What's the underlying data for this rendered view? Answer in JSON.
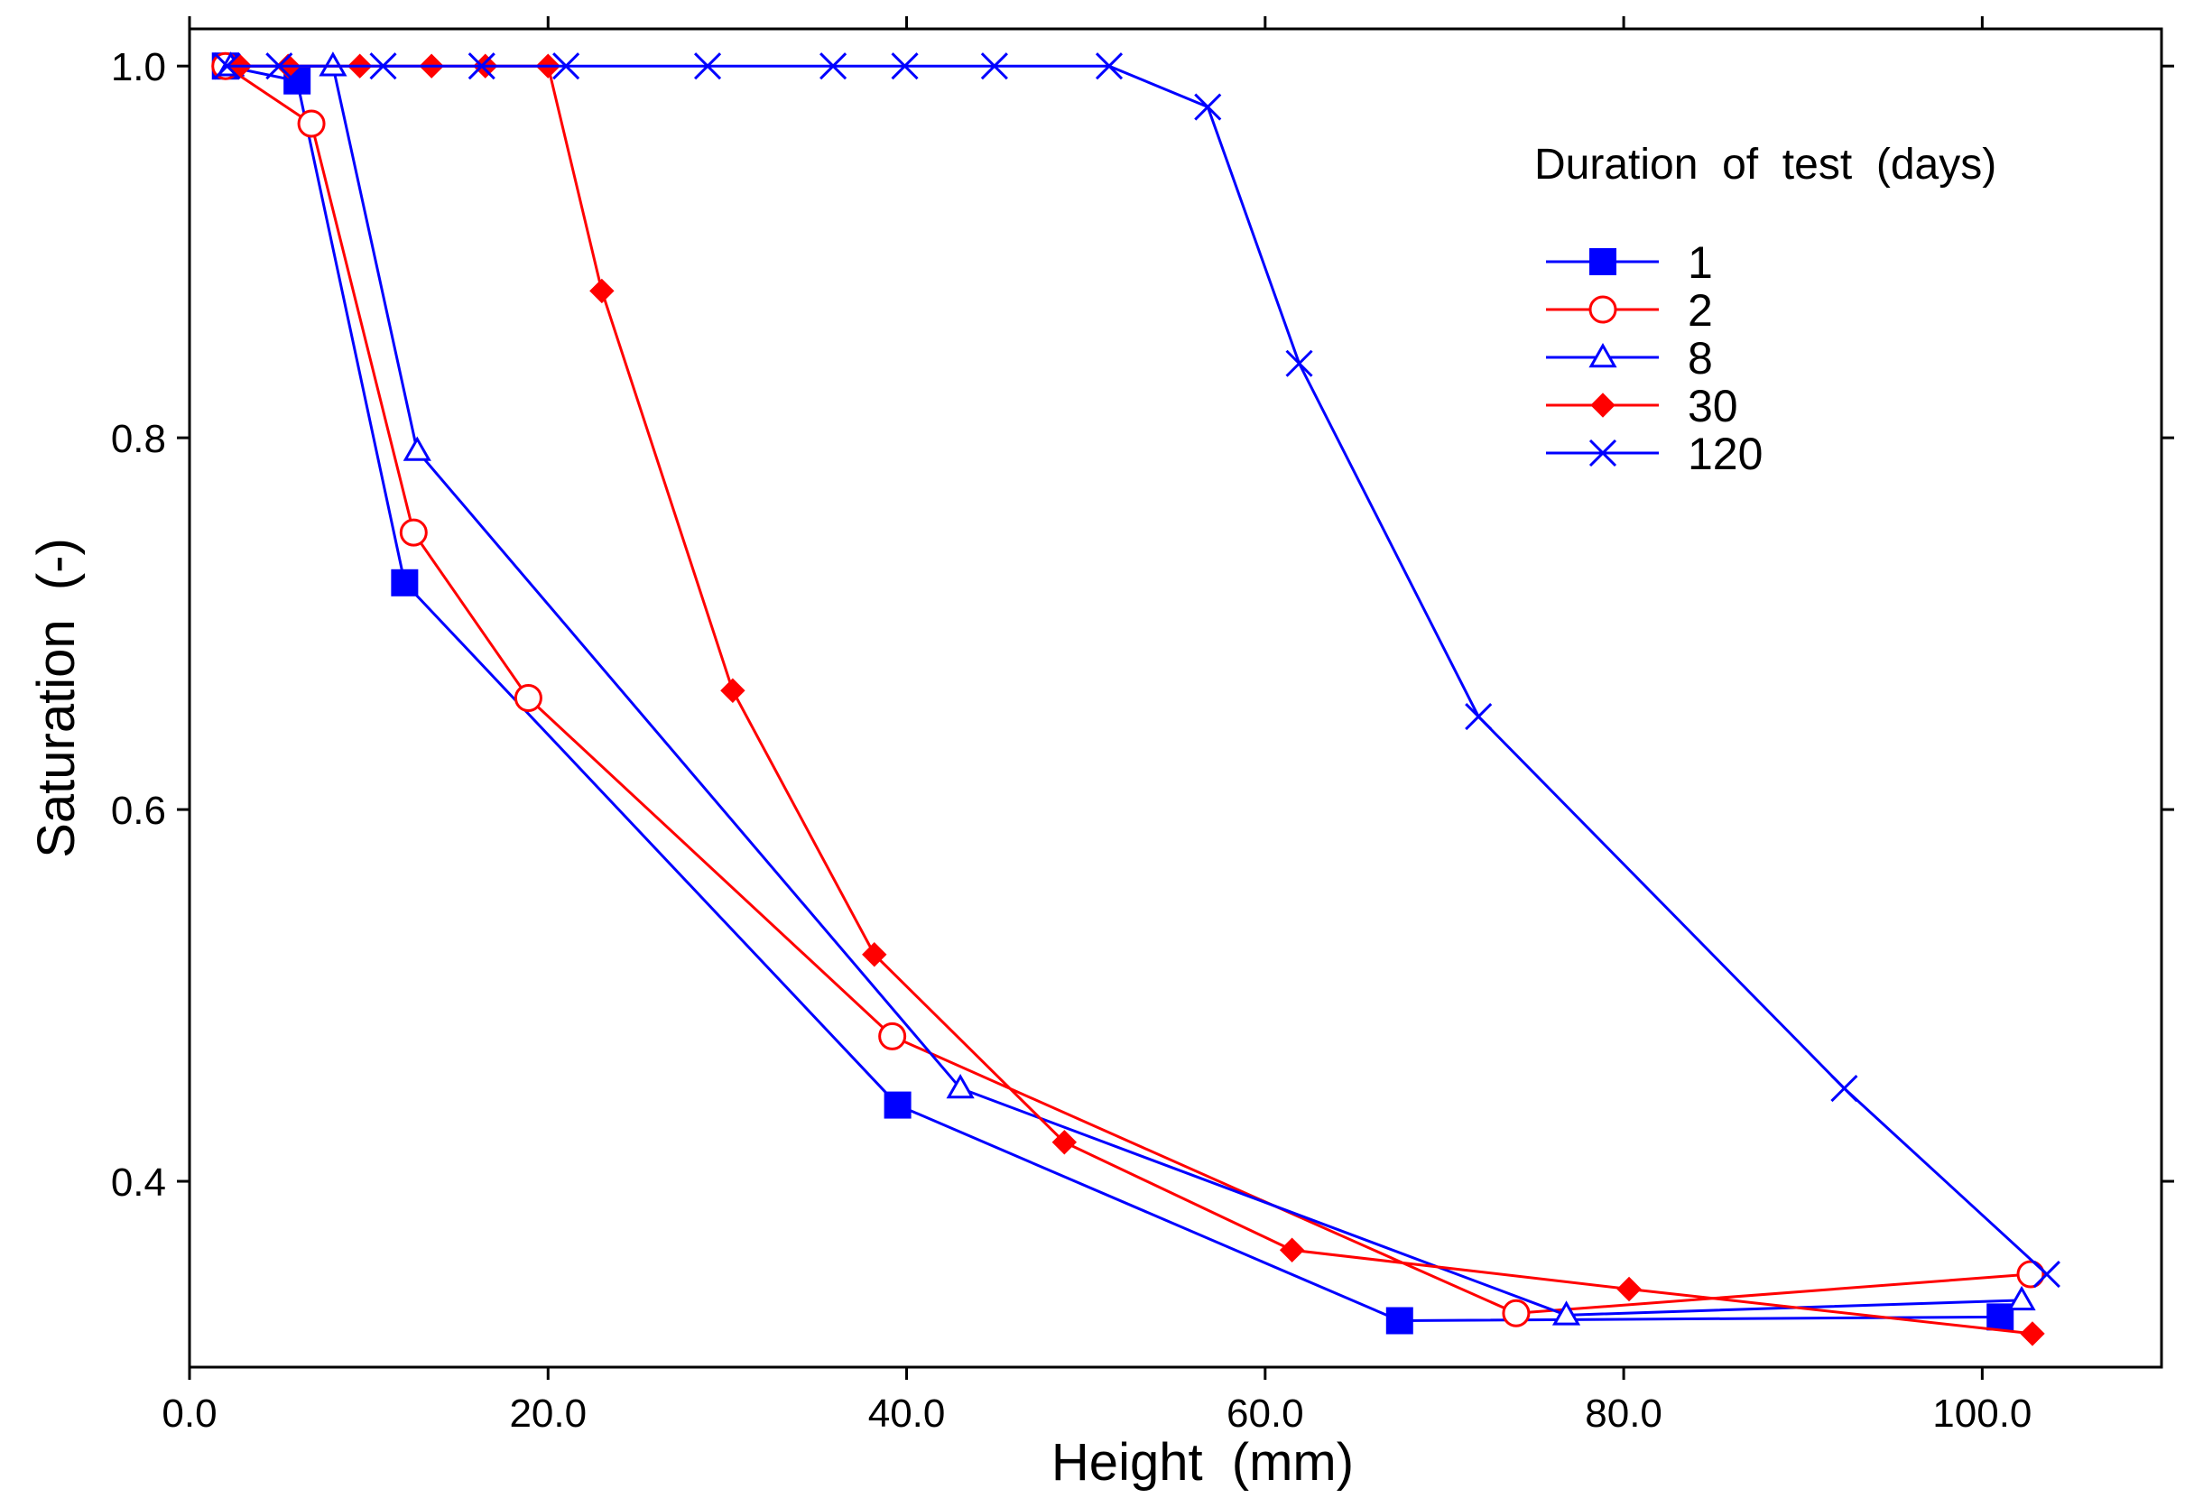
{
  "chart_data": {
    "type": "line",
    "title": "",
    "xlabel": "Height  (mm)",
    "ylabel": "Saturation  (-)",
    "xlim": [
      0,
      110
    ],
    "ylim": [
      0.3,
      1.02
    ],
    "xticks": [
      0,
      20,
      40,
      60,
      80,
      100
    ],
    "xtick_labels": [
      "0.0",
      "20.0",
      "40.0",
      "60.0",
      "80.0",
      "100.0"
    ],
    "yticks": [
      0.4,
      0.6,
      0.8,
      1.0
    ],
    "ytick_labels": [
      "0.4",
      "0.6",
      "0.8",
      "1.0"
    ],
    "grid": false,
    "legend": {
      "title": "Duration  of  test  (days)",
      "position": "top-right"
    },
    "series": [
      {
        "name": "1",
        "color": "#0000ff",
        "marker": "square-filled",
        "x": [
          2.0,
          6.0,
          12.0,
          39.5,
          67.5,
          101.0
        ],
        "y": [
          1.0,
          0.992,
          0.722,
          0.441,
          0.325,
          0.327
        ]
      },
      {
        "name": "2",
        "color": "#ff0000",
        "marker": "circle-open",
        "x": [
          2.0,
          6.8,
          12.5,
          18.9,
          39.2,
          74.0,
          102.7
        ],
        "y": [
          1.0,
          0.969,
          0.749,
          0.66,
          0.478,
          0.329,
          0.35
        ]
      },
      {
        "name": "8",
        "color": "#0000ff",
        "marker": "triangle-open",
        "x": [
          2.3,
          8.0,
          12.7,
          43.0,
          76.8,
          102.2
        ],
        "y": [
          1.0,
          1.0,
          0.793,
          0.45,
          0.328,
          0.336
        ]
      },
      {
        "name": "30",
        "color": "#ff0000",
        "marker": "diamond-filled",
        "x": [
          2.8,
          5.5,
          9.5,
          13.5,
          16.5,
          20.0,
          23.0,
          30.3,
          38.2,
          48.8,
          61.5,
          80.3,
          102.8
        ],
        "y": [
          1.0,
          1.0,
          1.0,
          1.0,
          1.0,
          1.0,
          0.879,
          0.664,
          0.522,
          0.421,
          0.363,
          0.342,
          0.318
        ]
      },
      {
        "name": "120",
        "color": "#0000ff",
        "marker": "x",
        "x": [
          2.1,
          5.0,
          10.8,
          16.3,
          21.0,
          28.9,
          35.9,
          39.9,
          44.9,
          51.3,
          56.8,
          61.9,
          71.9,
          92.3,
          103.6
        ],
        "y": [
          1.0,
          1.0,
          1.0,
          1.0,
          1.0,
          1.0,
          1.0,
          1.0,
          1.0,
          1.0,
          0.978,
          0.84,
          0.65,
          0.45,
          0.35
        ]
      }
    ]
  }
}
